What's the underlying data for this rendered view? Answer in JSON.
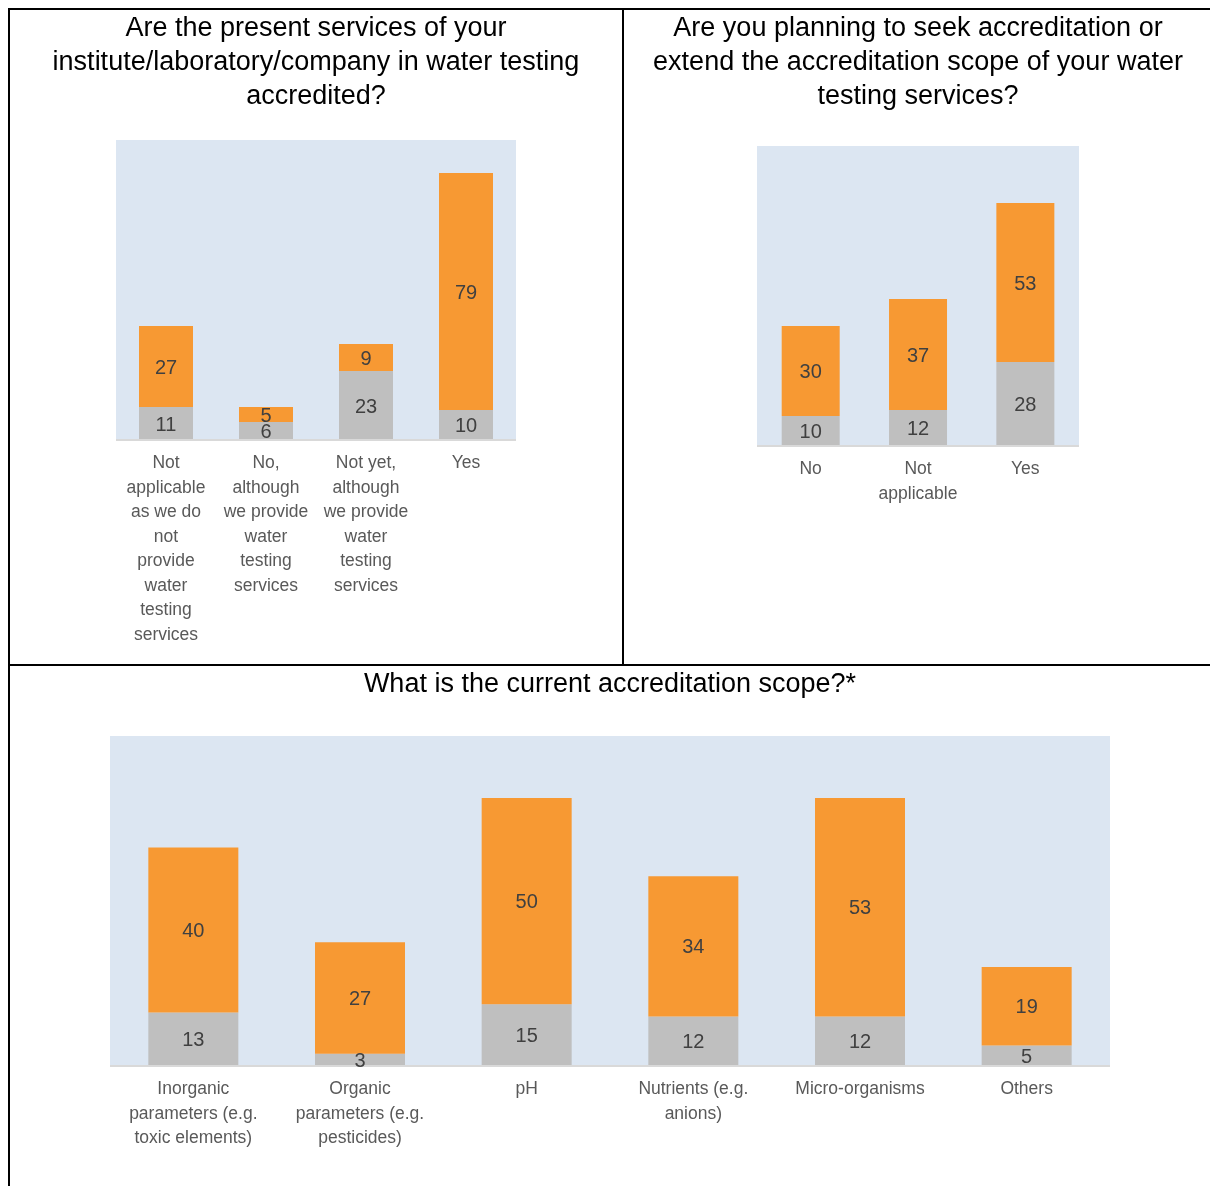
{
  "chart_data": [
    {
      "type": "bar",
      "title": "Are the present services of your institute/laboratory/company in water testing accredited?",
      "categories": [
        "Not applicable as we do not provide water testing services",
        "No, although we provide water testing services",
        "Not yet, although we provide water testing services",
        "Yes"
      ],
      "stacked": true,
      "data_labels": true,
      "series": [
        {
          "color": "#bfbfbf",
          "values": [
            11,
            6,
            23,
            10
          ]
        },
        {
          "color": "#f79933",
          "values": [
            27,
            5,
            9,
            79
          ]
        }
      ]
    },
    {
      "type": "bar",
      "title": "Are you planning to seek accreditation or extend the accreditation scope of your water testing services?",
      "categories": [
        "No",
        "Not applicable",
        "Yes"
      ],
      "stacked": true,
      "data_labels": true,
      "series": [
        {
          "color": "#bfbfbf",
          "values": [
            10,
            12,
            28
          ]
        },
        {
          "color": "#f79933",
          "values": [
            30,
            37,
            53
          ]
        }
      ]
    },
    {
      "type": "bar",
      "title": "What is the current accreditation scope?*",
      "categories": [
        "Inorganic parameters (e.g. toxic elements)",
        "Organic parameters (e.g. pesticides)",
        "pH",
        "Nutrients (e.g. anions)",
        "Micro-organisms",
        "Others"
      ],
      "stacked": true,
      "data_labels": true,
      "series": [
        {
          "color": "#bfbfbf",
          "values": [
            13,
            3,
            15,
            12,
            12,
            5
          ]
        },
        {
          "color": "#f79933",
          "values": [
            40,
            27,
            50,
            34,
            53,
            19
          ]
        }
      ]
    }
  ]
}
